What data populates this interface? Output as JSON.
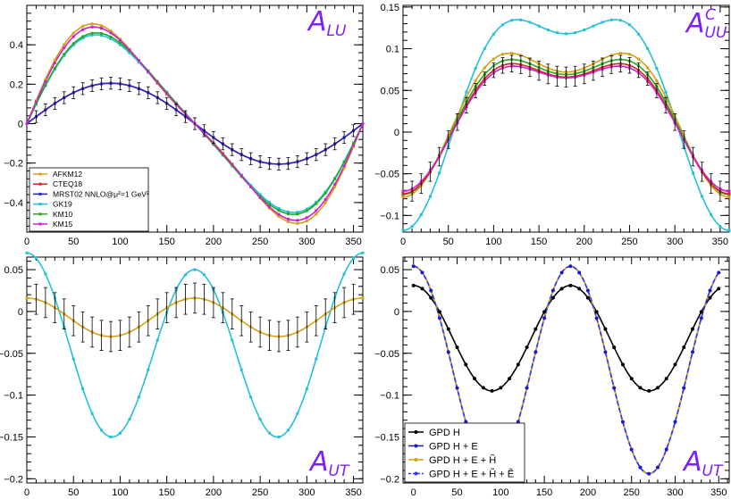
{
  "chart_data": [
    {
      "type": "line",
      "panel_label": "A",
      "panel_label_sub": "LU",
      "xlim": [
        0,
        360
      ],
      "ylim": [
        -0.55,
        0.6
      ],
      "x_ticks": [
        0,
        50,
        100,
        150,
        200,
        250,
        300,
        350
      ],
      "y_ticks": [
        -0.4,
        -0.2,
        0,
        0.2,
        0.4
      ],
      "y_tick_labels": [
        "−0.4",
        "−0.2",
        "0",
        "0.2",
        "0.4"
      ],
      "legend_position": "bottom-left",
      "series": [
        {
          "name": "AFKM12",
          "color": "#d4a017",
          "amp1": 0.47,
          "amp2": 0.1,
          "c0": 0
        },
        {
          "name": "CTEQ18",
          "color": "#dd2222",
          "amp1": 0.205,
          "amp2": 0.0,
          "c0": 0,
          "errors": true
        },
        {
          "name": "MRST02 NNLO@μ²=1 GeV²",
          "color": "#2222cc",
          "amp1": 0.205,
          "amp2": 0.0,
          "c0": 0
        },
        {
          "name": "GK19",
          "color": "#22c1d6",
          "amp1": 0.43,
          "amp2": 0.07,
          "c0": 0
        },
        {
          "name": "KM10",
          "color": "#22aa22",
          "amp1": 0.44,
          "amp2": 0.07,
          "c0": 0
        },
        {
          "name": "KM15",
          "color": "#cc22cc",
          "amp1": 0.46,
          "amp2": 0.09,
          "c0": 0
        }
      ]
    },
    {
      "type": "line",
      "panel_label": "A",
      "panel_label_sub": "UU",
      "panel_label_sup": "C",
      "xlim": [
        0,
        360
      ],
      "ylim": [
        -0.12,
        0.152
      ],
      "x_ticks": [
        0,
        50,
        100,
        150,
        200,
        250,
        300,
        350
      ],
      "y_ticks": [
        -0.1,
        -0.05,
        0,
        0.05,
        0.1,
        0.15
      ],
      "y_tick_labels": [
        "−0.1",
        "−0.05",
        "0",
        "0.05",
        "0.1",
        "0.15"
      ],
      "series": [
        {
          "name": "GK19",
          "color": "#22c1d6",
          "c0": 0.05,
          "c1": -0.118,
          "c2": -0.05
        },
        {
          "name": "AFKM12",
          "color": "#d4a017",
          "c0": 0.037,
          "c1": -0.075,
          "c2": -0.04
        },
        {
          "name": "KM10",
          "color": "#22aa22",
          "c0": 0.033,
          "c1": -0.072,
          "c2": -0.036
        },
        {
          "name": "CTEQ18",
          "color": "#dd2222",
          "c0": 0.03,
          "c1": -0.07,
          "c2": -0.034,
          "errors": true
        },
        {
          "name": "KM15",
          "color": "#cc22cc",
          "c0": 0.029,
          "c1": -0.068,
          "c2": -0.032
        }
      ]
    },
    {
      "type": "line",
      "panel_label": "A",
      "panel_label_sub": "UT",
      "xlim": [
        0,
        360
      ],
      "ylim": [
        -0.205,
        0.065
      ],
      "x_ticks": [
        0,
        50,
        100,
        150,
        200,
        250,
        300,
        350
      ],
      "y_ticks": [
        -0.2,
        -0.15,
        -0.1,
        -0.05,
        0,
        0.05
      ],
      "y_tick_labels": [
        "−0.2",
        "−0.15",
        "−0.1",
        "−0.05",
        "0",
        "0.05"
      ],
      "series": [
        {
          "name": "GK19",
          "color": "#22c1d6",
          "c0": -0.045,
          "c1": 0.01,
          "c2": 0.105
        },
        {
          "name": "AFKM12",
          "color": "#d4a017",
          "c0": -0.007,
          "c1": 0.0,
          "c2": 0.023,
          "errors": true
        }
      ]
    },
    {
      "type": "line",
      "panel_label": "A",
      "panel_label_sub": "UT",
      "xlim": [
        -12,
        362
      ],
      "ylim": [
        -0.205,
        0.065
      ],
      "x_ticks": [
        0,
        50,
        100,
        150,
        200,
        250,
        300,
        350
      ],
      "y_ticks": [
        -0.2,
        -0.15,
        -0.1,
        -0.05,
        0,
        0.05
      ],
      "y_tick_labels": [
        "−0.2",
        "−0.15",
        "−0.1",
        "−0.05",
        "0",
        "0.05"
      ],
      "legend_position": "bottom-left",
      "series": [
        {
          "name": "GPD H",
          "color": "#000000",
          "c0": -0.032,
          "c1": 0.0,
          "c2": 0.063
        },
        {
          "name": "GPD H + E",
          "color": "#1a1acc",
          "c0": -0.07,
          "c1": 0.0,
          "c2": 0.124
        },
        {
          "name": "GPD H + E + H̃",
          "color": "#d4a017",
          "c0": -0.07,
          "c1": 0.0,
          "c2": 0.124
        },
        {
          "name": "GPD H + E + H̃ + Ẽ",
          "color": "#3333ff",
          "c0": -0.07,
          "c1": 0.0,
          "c2": 0.124,
          "dashed": true
        }
      ]
    }
  ]
}
